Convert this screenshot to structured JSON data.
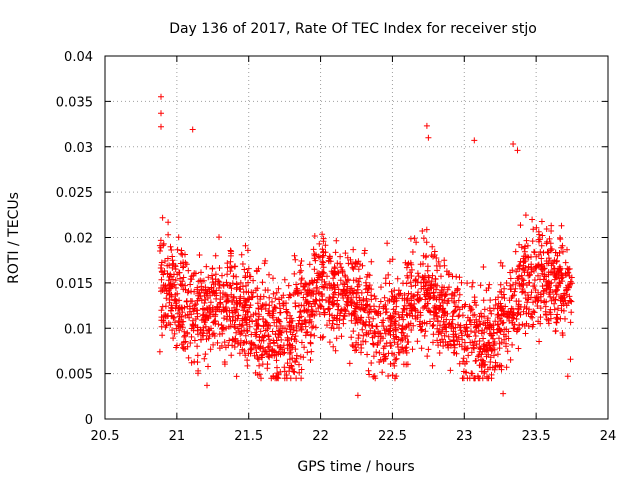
{
  "chart_data": {
    "type": "scatter",
    "title": "Day 136 of 2017, Rate Of TEC Index for receiver stjo",
    "xlabel": "GPS time / hours",
    "ylabel": "ROTI / TECUs",
    "xlim": [
      20.5,
      24
    ],
    "ylim": [
      0,
      0.04
    ],
    "x_ticks": [
      "20.5",
      "21",
      "21.5",
      "22",
      "22.5",
      "23",
      "23.5",
      "24"
    ],
    "y_ticks": [
      "0",
      "0.005",
      "0.01",
      "0.015",
      "0.02",
      "0.025",
      "0.03",
      "0.035",
      "0.04"
    ],
    "grid": true,
    "marker": "plus",
    "series": [
      {
        "name": "ROTI",
        "color": "#ff0000",
        "x_range": [
          20.88,
          23.75
        ],
        "n_points": 2400,
        "typical_range": [
          0.004,
          0.024
        ],
        "notable_points": [
          {
            "x": 20.89,
            "y": 0.0355
          },
          {
            "x": 20.89,
            "y": 0.0337
          },
          {
            "x": 20.89,
            "y": 0.0322
          },
          {
            "x": 21.11,
            "y": 0.0319
          },
          {
            "x": 22.74,
            "y": 0.0323
          },
          {
            "x": 22.75,
            "y": 0.031
          },
          {
            "x": 23.07,
            "y": 0.0307
          },
          {
            "x": 23.34,
            "y": 0.0303
          },
          {
            "x": 23.37,
            "y": 0.0296
          },
          {
            "x": 22.26,
            "y": 0.0026
          },
          {
            "x": 23.27,
            "y": 0.0028
          },
          {
            "x": 21.21,
            "y": 0.0037
          },
          {
            "x": 23.72,
            "y": 0.0047
          }
        ]
      }
    ]
  }
}
